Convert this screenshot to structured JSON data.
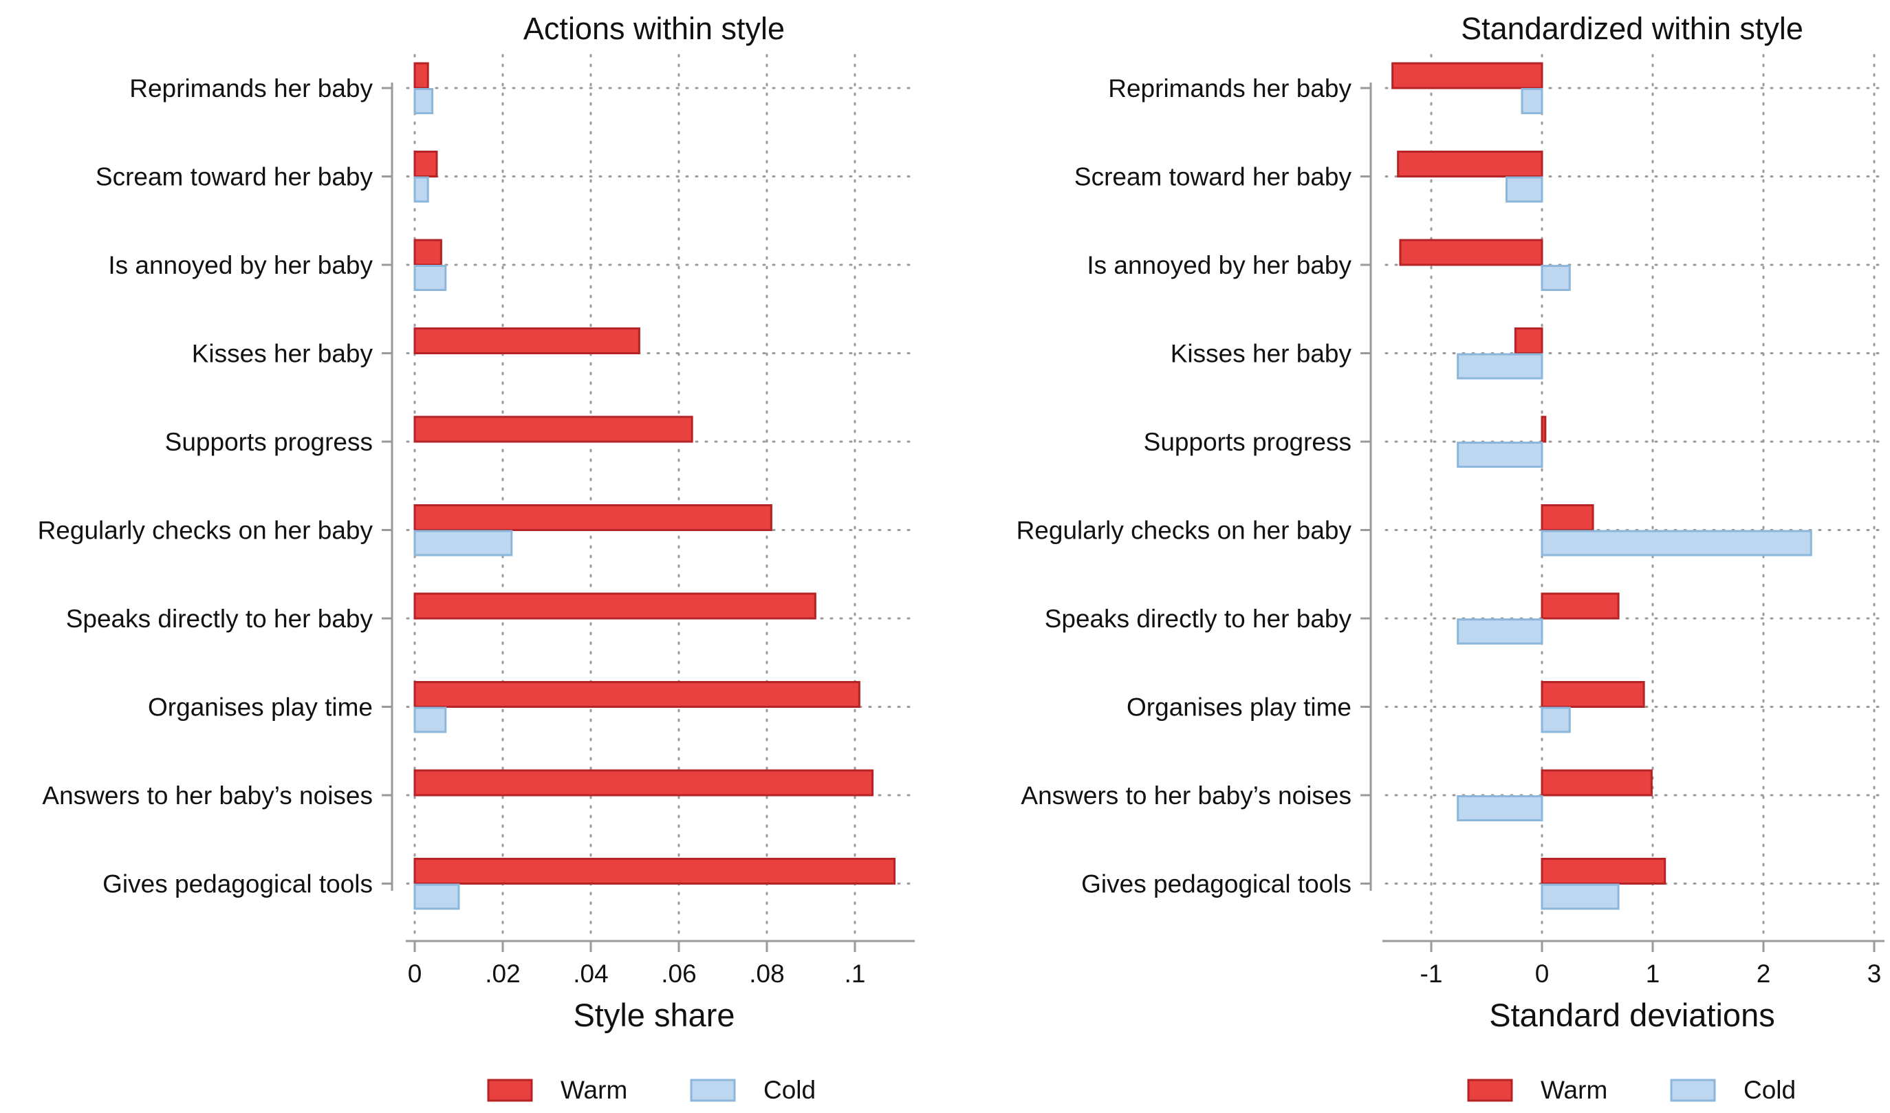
{
  "colors": {
    "warm_fill": "#E8413F",
    "warm_stroke": "#B52326",
    "cold_fill": "#BCD7EF",
    "cold_stroke": "#8DB6DB",
    "axis": "#9A9A9A",
    "grid": "#9A9A9A"
  },
  "legend": {
    "warm": "Warm",
    "cold": "Cold"
  },
  "chart_data": [
    {
      "type": "bar",
      "orientation": "horizontal",
      "title": "Actions within style",
      "xlabel": "Style share",
      "xlim": [
        0,
        0.112
      ],
      "xticks": [
        0,
        0.02,
        0.04,
        0.06,
        0.08,
        0.1
      ],
      "xtick_labels": [
        "0",
        ".02",
        ".04",
        ".06",
        ".08",
        ".1"
      ],
      "grid": true,
      "legend_position": "bottom",
      "categories": [
        "Reprimands her baby",
        "Scream toward her baby",
        "Is annoyed by her baby",
        "Kisses her baby",
        "Supports progress",
        "Regularly checks on her baby",
        "Speaks directly to her baby",
        "Organises play time",
        "Answers to her baby’s noises",
        "Gives pedagogical tools"
      ],
      "series": [
        {
          "name": "Warm",
          "values": [
            0.003,
            0.005,
            0.006,
            0.051,
            0.063,
            0.081,
            0.091,
            0.101,
            0.104,
            0.109
          ]
        },
        {
          "name": "Cold",
          "values": [
            0.004,
            0.003,
            0.007,
            0.0,
            0.0,
            0.022,
            0.0,
            0.007,
            0.0,
            0.01
          ]
        }
      ]
    },
    {
      "type": "bar",
      "orientation": "horizontal",
      "title": "Standardized within style",
      "xlabel": "Standard deviations",
      "xlim": [
        -1.45,
        3.0
      ],
      "xticks": [
        -1,
        0,
        1,
        2,
        3
      ],
      "xtick_labels": [
        "-1",
        "0",
        "1",
        "2",
        "3"
      ],
      "grid": true,
      "legend_position": "bottom",
      "categories": [
        "Reprimands her baby",
        "Scream toward her baby",
        "Is annoyed by her baby",
        "Kisses her baby",
        "Supports progress",
        "Regularly checks on her baby",
        "Speaks directly to her baby",
        "Organises play time",
        "Answers to her baby’s noises",
        "Gives pedagogical tools"
      ],
      "series": [
        {
          "name": "Warm",
          "values": [
            -1.35,
            -1.3,
            -1.28,
            -0.24,
            0.03,
            0.46,
            0.69,
            0.92,
            0.99,
            1.11
          ]
        },
        {
          "name": "Cold",
          "values": [
            -0.18,
            -0.32,
            0.25,
            -0.76,
            -0.76,
            2.43,
            -0.76,
            0.25,
            -0.76,
            0.69
          ]
        }
      ]
    }
  ]
}
